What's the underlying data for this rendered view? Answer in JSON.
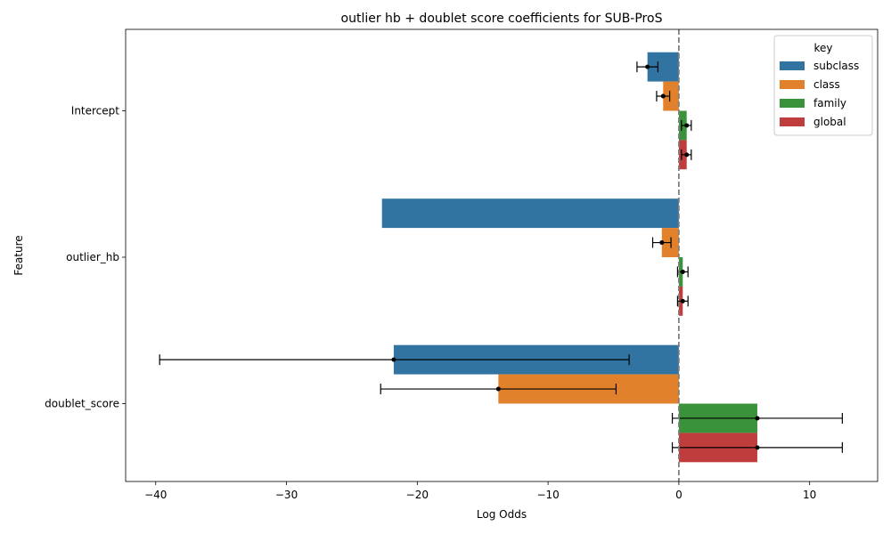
{
  "chart_data": {
    "type": "bar",
    "orientation": "horizontal",
    "title": "outlier hb + doublet score coefficients for SUB-ProS",
    "xlabel": "Log Odds",
    "ylabel": "Feature",
    "xlim": [
      -42.3,
      15.2
    ],
    "xticks": [
      -40,
      -30,
      -20,
      -10,
      0,
      10
    ],
    "xtick_labels": [
      "−40",
      "−30",
      "−20",
      "−10",
      "0",
      "10"
    ],
    "categories": [
      "Intercept",
      "outlier_hb",
      "doublet_score"
    ],
    "reference_line": 0,
    "legend": {
      "title": "key",
      "position": "top-right"
    },
    "series": [
      {
        "name": "subclass",
        "color": "#3274a1",
        "values": [
          -2.4,
          -22.7,
          -21.8
        ],
        "error_low": [
          -3.2,
          null,
          -39.7
        ],
        "error_high": [
          -1.6,
          null,
          -3.8
        ],
        "show_point": [
          true,
          false,
          true
        ]
      },
      {
        "name": "class",
        "color": "#e1812c",
        "values": [
          -1.2,
          -1.3,
          -13.8
        ],
        "error_low": [
          -1.7,
          -2.0,
          -22.8
        ],
        "error_high": [
          -0.7,
          -0.6,
          -4.8
        ],
        "show_point": [
          true,
          true,
          true
        ]
      },
      {
        "name": "family",
        "color": "#3a923a",
        "values": [
          0.6,
          0.3,
          6.0
        ],
        "error_low": [
          0.2,
          -0.1,
          -0.5
        ],
        "error_high": [
          0.95,
          0.7,
          12.5
        ],
        "show_point": [
          true,
          true,
          true
        ]
      },
      {
        "name": "global",
        "color": "#c03d3e",
        "values": [
          0.6,
          0.3,
          6.0
        ],
        "error_low": [
          0.2,
          -0.1,
          -0.5
        ],
        "error_high": [
          0.95,
          0.7,
          12.5
        ],
        "show_point": [
          true,
          true,
          true
        ]
      }
    ]
  }
}
